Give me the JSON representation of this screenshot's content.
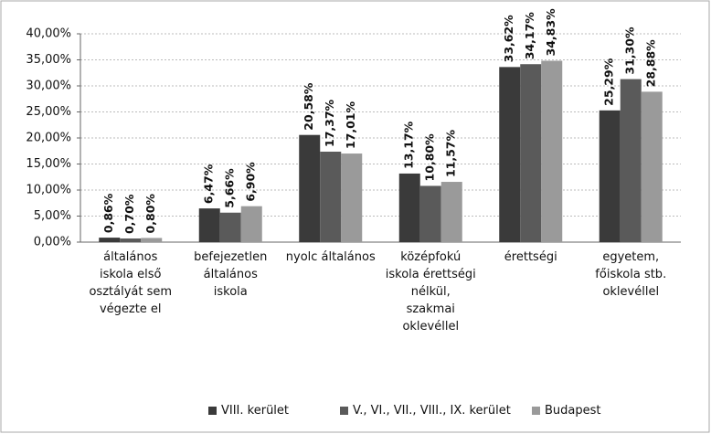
{
  "chart_data": {
    "type": "bar",
    "categories": [
      "általános iskola első osztályát sem végezte el",
      "befejezetlen általános iskola",
      "nyolc általános",
      "középfokú iskola érettségi nélkül, szakmai oklevéllel",
      "érettségi",
      "egyetem, főiskola stb. oklevéllel"
    ],
    "series": [
      {
        "name": "VIII. kerület",
        "color": "#3a3a3a",
        "values": [
          0.86,
          6.47,
          20.58,
          13.17,
          33.62,
          25.29
        ],
        "value_labels": [
          "0,86%",
          "6,47%",
          "20,58%",
          "13,17%",
          "33,62%",
          "25,29%"
        ]
      },
      {
        "name": "V., VI., VII., VIII., IX. kerület",
        "color": "#5a5a5a",
        "values": [
          0.7,
          5.66,
          17.37,
          10.8,
          34.17,
          31.3
        ],
        "value_labels": [
          "0,70%",
          "5,66%",
          "17,37%",
          "10,80%",
          "34,17%",
          "31,30%"
        ]
      },
      {
        "name": "Budapest",
        "color": "#9a9a9a",
        "values": [
          0.8,
          6.9,
          17.01,
          11.57,
          34.83,
          28.88
        ],
        "value_labels": [
          "0,80%",
          "6,90%",
          "17,01%",
          "11,57%",
          "34,83%",
          "28,88%"
        ]
      }
    ],
    "ylim": [
      0,
      40
    ],
    "yticks": [
      {
        "value": 0,
        "label": "0,00%"
      },
      {
        "value": 5,
        "label": "5,00%"
      },
      {
        "value": 10,
        "label": "10,00%"
      },
      {
        "value": 15,
        "label": "15,00%"
      },
      {
        "value": 20,
        "label": "20,00%"
      },
      {
        "value": 25,
        "label": "25,00%"
      },
      {
        "value": 30,
        "label": "30,00%"
      },
      {
        "value": 35,
        "label": "35,00%"
      },
      {
        "value": 40,
        "label": "40,00%"
      }
    ],
    "grid": true
  }
}
